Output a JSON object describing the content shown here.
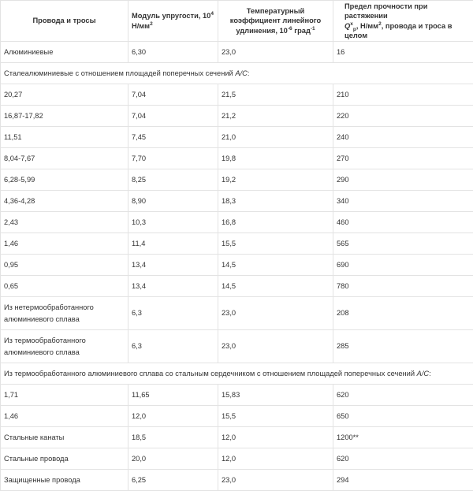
{
  "header": {
    "col1": "Провода и тросы",
    "col2_main": "Модуль упругости, 10",
    "col2_exp": "4",
    "col2_unit": " Н/мм",
    "col2_unit_exp": "2",
    "col3_main": "Температурный коэффициент линейного удлинения, 10",
    "col3_exp": "-6",
    "col3_unit": " град",
    "col3_unit_exp": "-1",
    "col4_line1": "Предел прочности при растяжении",
    "col4_sym": "Q",
    "col4_sym_sup": "x",
    "col4_sym_sub": "p",
    "col4_rest": ", Н/мм",
    "col4_rest_exp": "2",
    "col4_tail": ", провода и троса в целом"
  },
  "rows_a": [
    {
      "c1": "Алюминиевые",
      "c2": "6,30",
      "c3": "23,0",
      "c4": "16"
    }
  ],
  "section1": {
    "text": "Сталеалюминиевые с отношением площадей поперечных сечений ",
    "ratio": "А/С",
    "colon": ":"
  },
  "rows_b": [
    {
      "c1": "20,27",
      "c2": "7,04",
      "c3": "21,5",
      "c4": "210"
    },
    {
      "c1": "16,87-17,82",
      "c2": "7,04",
      "c3": "21,2",
      "c4": "220"
    },
    {
      "c1": "11,51",
      "c2": "7,45",
      "c3": "21,0",
      "c4": "240"
    },
    {
      "c1": "8,04-7,67",
      "c2": "7,70",
      "c3": "19,8",
      "c4": "270"
    },
    {
      "c1": "6,28-5,99",
      "c2": "8,25",
      "c3": "19,2",
      "c4": "290"
    },
    {
      "c1": "4,36-4,28",
      "c2": "8,90",
      "c3": "18,3",
      "c4": "340"
    },
    {
      "c1": "2,43",
      "c2": "10,3",
      "c3": "16,8",
      "c4": "460"
    },
    {
      "c1": "1,46",
      "c2": "11,4",
      "c3": "15,5",
      "c4": "565"
    },
    {
      "c1": "0,95",
      "c2": "13,4",
      "c3": "14,5",
      "c4": "690"
    },
    {
      "c1": "0,65",
      "c2": "13,4",
      "c3": "14,5",
      "c4": "780"
    }
  ],
  "rows_c": [
    {
      "c1": "Из нетермообработанного алюминиевого сплава",
      "c2": "6,3",
      "c3": "23,0",
      "c4": "208"
    },
    {
      "c1": "Из термообработанного алюминиевого сплава",
      "c2": "6,3",
      "c3": "23,0",
      "c4": "285"
    }
  ],
  "section2": {
    "text": "Из термообработанного алюминиевого сплава со стальным сердечником с отношением площадей поперечных сечений ",
    "ratio": "А/С",
    "colon": ":"
  },
  "rows_d": [
    {
      "c1": "1,71",
      "c2": "11,65",
      "c3": "15,83",
      "c4": "620"
    },
    {
      "c1": "1,46",
      "c2": "12,0",
      "c3": "15,5",
      "c4": "650"
    },
    {
      "c1": "Стальные канаты",
      "c2": "18,5",
      "c3": "12,0",
      "c4": "1200**"
    },
    {
      "c1": "Стальные провода",
      "c2": "20,0",
      "c3": "12,0",
      "c4": "620"
    },
    {
      "c1": "Защищенные провода",
      "c2": "6,25",
      "c3": "23,0",
      "c4": "294"
    }
  ]
}
